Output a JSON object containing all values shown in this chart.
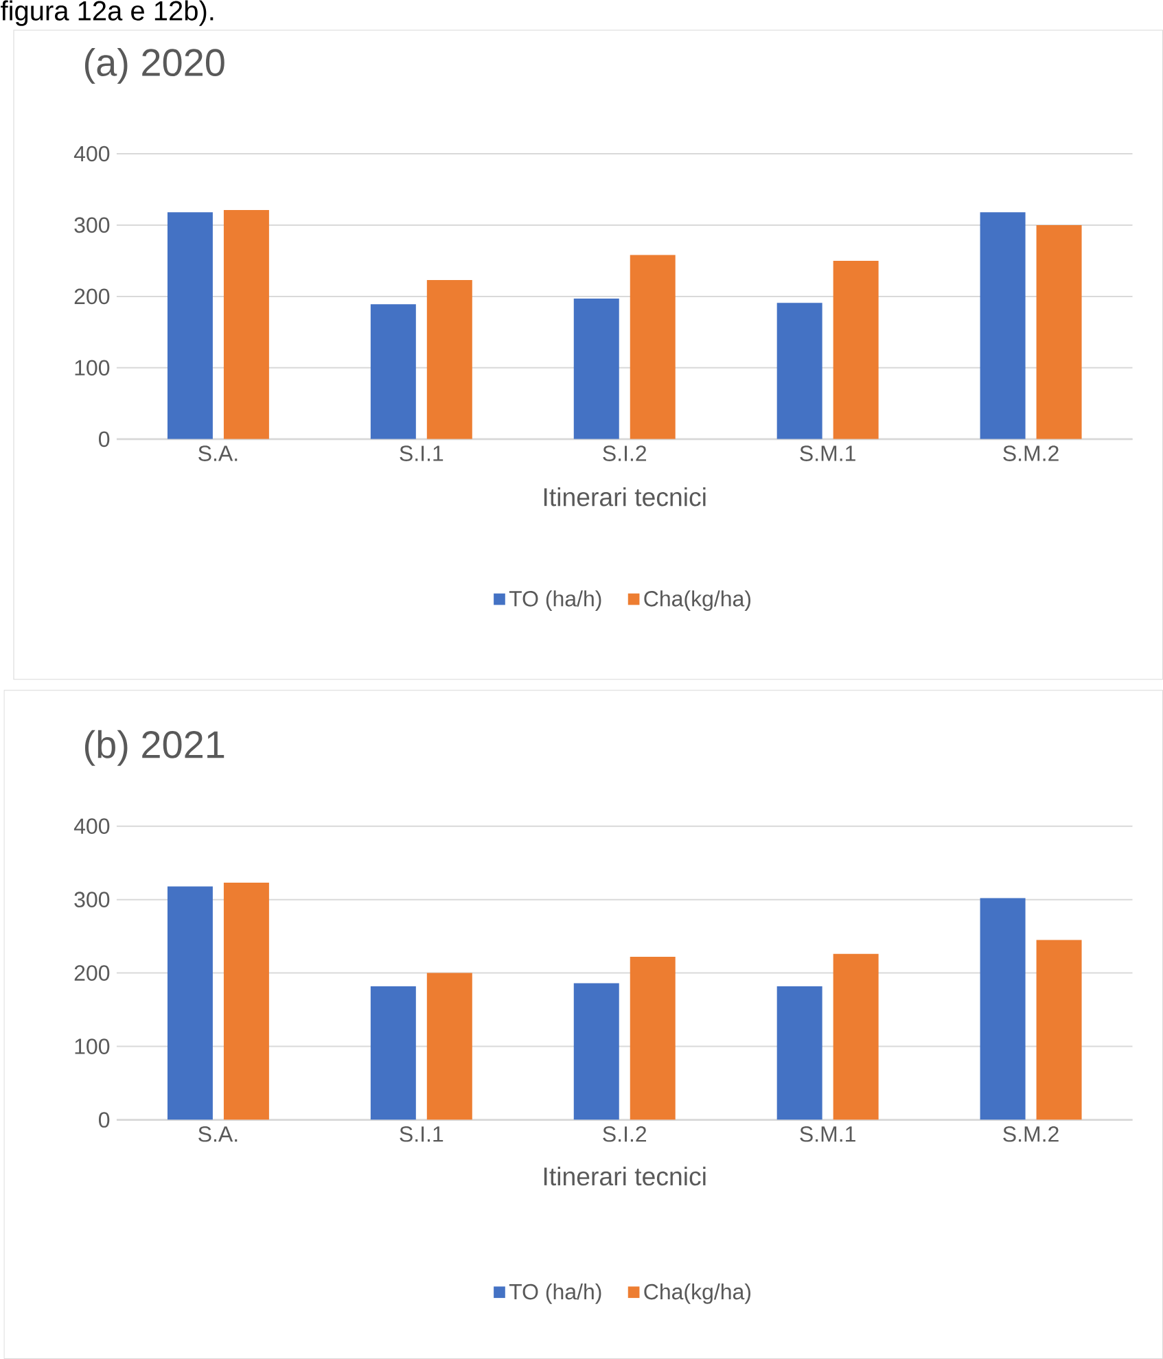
{
  "chart_data": [
    {
      "type": "bar",
      "title": "(a) 2020",
      "xlabel": "Itinerari tecnici",
      "categories": [
        "S.A.",
        "S.I.1",
        "S.I.2",
        "S.M.1",
        "S.M.2"
      ],
      "series": [
        {
          "name": "TO (ha/h)",
          "color": "#4472c4",
          "values": [
            318,
            189,
            197,
            191,
            318
          ]
        },
        {
          "name": "Cha(kg/ha)",
          "color": "#ed7d31",
          "values": [
            321,
            223,
            258,
            250,
            300
          ]
        }
      ],
      "ylim": [
        0,
        400
      ],
      "yticks": [
        0,
        100,
        200,
        300,
        400
      ],
      "grid": "y",
      "legend": "bottom",
      "annotations": [
        "figura 12a e 12b)."
      ]
    },
    {
      "type": "bar",
      "title": "(b) 2021",
      "xlabel": "Itinerari tecnici",
      "categories": [
        "S.A.",
        "S.I.1",
        "S.I.2",
        "S.M.1",
        "S.M.2"
      ],
      "series": [
        {
          "name": "TO (ha/h)",
          "color": "#4472c4",
          "values": [
            318,
            182,
            186,
            182,
            302
          ]
        },
        {
          "name": "Cha(kg/ha)",
          "color": "#ed7d31",
          "values": [
            323,
            200,
            222,
            226,
            245
          ]
        }
      ],
      "ylim": [
        0,
        400
      ],
      "yticks": [
        0,
        100,
        200,
        300,
        400
      ],
      "grid": "y",
      "legend": "bottom"
    }
  ]
}
